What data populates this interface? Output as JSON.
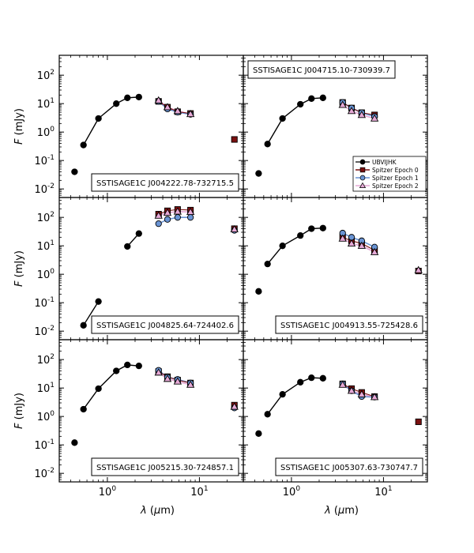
{
  "figure": {
    "axis_labels": {
      "ylabel": "F (mJy)",
      "xlabel": "λ (μm)"
    },
    "x_ticks": [
      {
        "value": 1,
        "label": "10^0"
      },
      {
        "value": 10,
        "label": "10^1"
      }
    ],
    "y_ticks": [
      {
        "value": 0.01,
        "label": "10^-2"
      },
      {
        "value": 0.1,
        "label": "10^-1"
      },
      {
        "value": 1,
        "label": "10^0"
      },
      {
        "value": 10,
        "label": "10^1"
      },
      {
        "value": 100,
        "label": "10^2"
      }
    ]
  },
  "chart_data": {
    "type": "scatter",
    "x_scale": "log",
    "y_scale": "log",
    "xlim": [
      0.3,
      30
    ],
    "ylim": [
      0.005,
      500
    ],
    "legend": {
      "panel": 1,
      "placement": "lower-right",
      "entries": [
        {
          "name": "UBVIJHK",
          "marker": "circle",
          "color": "#000000"
        },
        {
          "name": "Spitzer Epoch 0",
          "marker": "square",
          "color": "#7a1010"
        },
        {
          "name": "Spitzer Epoch 1",
          "marker": "circle",
          "color": "#6a94d4"
        },
        {
          "name": "Spitzer Epoch 2",
          "marker": "triangle",
          "color": "#e6a9d6"
        }
      ]
    },
    "panels": [
      {
        "label": "SSTISAGE1C J004222.78-732715.5",
        "label_pos": "bottom-right",
        "xlabel": "",
        "ylabel": "F (mJy)",
        "ubvijhk": {
          "x": [
            0.44,
            0.55,
            0.8,
            1.25,
            1.65,
            2.2
          ],
          "y": [
            0.04,
            0.35,
            3.0,
            10,
            16,
            17
          ],
          "line_from": 1
        },
        "epoch0": {
          "x": [
            3.6,
            4.5,
            5.8,
            8.0,
            24
          ],
          "y": [
            12,
            7.5,
            5.2,
            4.5,
            0.55
          ]
        },
        "epoch1": {
          "x": [
            3.6,
            4.5,
            5.8,
            8.0
          ],
          "y": [
            12,
            6.5,
            5.0,
            4.2
          ]
        },
        "epoch2": {
          "x": [
            3.6,
            4.5,
            5.8,
            8.0
          ],
          "y": [
            13,
            7.5,
            5.5,
            4.3
          ]
        }
      },
      {
        "label": "SSTISAGE1C J004715.10-730939.7",
        "label_pos": "top-left",
        "xlabel": "",
        "ylabel": "",
        "ubvijhk": {
          "x": [
            0.44,
            0.55,
            0.8,
            1.25,
            1.65,
            2.2
          ],
          "y": [
            0.035,
            0.38,
            3.0,
            9.5,
            15,
            16
          ],
          "line_from": 1
        },
        "epoch0": {
          "x": [
            3.6,
            4.5,
            5.8,
            8.0
          ],
          "y": [
            11,
            7.0,
            4.8,
            4.0
          ]
        },
        "epoch1": {
          "x": [
            3.6,
            4.5,
            5.8,
            8.0
          ],
          "y": [
            11,
            7.0,
            4.8,
            3.5
          ]
        },
        "epoch2": {
          "x": [
            3.6,
            4.5,
            5.8,
            8.0
          ],
          "y": [
            9,
            5.5,
            4.0,
            3.0
          ]
        }
      },
      {
        "label": "SSTISAGE1C J004825.64-724402.6",
        "label_pos": "bottom-right",
        "xlabel": "",
        "ylabel": "F (mJy)",
        "ubvijhk": {
          "x": [
            0.55,
            0.8,
            1.65,
            2.2
          ],
          "y": [
            0.016,
            0.11,
            9.5,
            27
          ],
          "line_from": 0,
          "line_gap_after": 1
        },
        "epoch0": {
          "x": [
            3.6,
            4.5,
            5.8,
            8.0,
            24
          ],
          "y": [
            130,
            170,
            190,
            180,
            40
          ]
        },
        "epoch1": {
          "x": [
            3.6,
            4.5,
            5.8,
            8.0,
            24
          ],
          "y": [
            60,
            85,
            100,
            100,
            35
          ]
        },
        "epoch2": {
          "x": [
            3.6,
            4.5,
            5.8,
            8.0,
            24
          ],
          "y": [
            115,
            145,
            160,
            155,
            38
          ]
        }
      },
      {
        "label": "SSTISAGE1C J004913.55-725428.6",
        "label_pos": "bottom-right",
        "xlabel": "",
        "ylabel": "",
        "ubvijhk": {
          "x": [
            0.44,
            0.55,
            0.8,
            1.25,
            1.65,
            2.2
          ],
          "y": [
            0.25,
            2.3,
            10,
            23,
            40,
            42
          ],
          "line_from": 1
        },
        "epoch0": {
          "x": [
            3.6,
            4.5,
            5.8,
            8.0,
            24
          ],
          "y": [
            20,
            15,
            12,
            7.0,
            1.3
          ]
        },
        "epoch1": {
          "x": [
            3.6,
            4.5,
            5.8,
            8.0
          ],
          "y": [
            28,
            20,
            15,
            9.0
          ]
        },
        "epoch2": {
          "x": [
            3.6,
            4.5,
            5.8,
            8.0,
            24
          ],
          "y": [
            18,
            12,
            10,
            6.0,
            1.4
          ]
        }
      },
      {
        "label": "SSTISAGE1C J005215.30-724857.1",
        "label_pos": "bottom-right",
        "xlabel": "λ (μm)",
        "ylabel": "F (mJy)",
        "ubvijhk": {
          "x": [
            0.44,
            0.55,
            0.8,
            1.25,
            1.65,
            2.2
          ],
          "y": [
            0.12,
            1.8,
            9.5,
            40,
            65,
            60
          ],
          "line_from": 1
        },
        "epoch0": {
          "x": [
            3.6,
            4.5,
            5.8,
            8.0,
            24
          ],
          "y": [
            38,
            25,
            19,
            15,
            2.5
          ]
        },
        "epoch1": {
          "x": [
            3.6,
            4.5,
            5.8,
            8.0,
            24
          ],
          "y": [
            42,
            24,
            20,
            15,
            2.0
          ]
        },
        "epoch2": {
          "x": [
            3.6,
            4.5,
            5.8,
            8.0,
            24
          ],
          "y": [
            35,
            21,
            17,
            13,
            2.2
          ]
        }
      },
      {
        "label": "SSTISAGE1C J005307.63-730747.7",
        "label_pos": "bottom-right",
        "xlabel": "λ (μm)",
        "ylabel": "",
        "ubvijhk": {
          "x": [
            0.44,
            0.55,
            0.8,
            1.25,
            1.65,
            2.2
          ],
          "y": [
            0.25,
            1.2,
            6.0,
            16,
            23,
            22
          ],
          "line_from": 1
        },
        "epoch0": {
          "x": [
            3.6,
            4.5,
            5.8,
            8.0,
            24
          ],
          "y": [
            14,
            9.5,
            7.0,
            5.0,
            0.65
          ]
        },
        "epoch1": {
          "x": [
            3.6,
            4.5,
            5.8,
            8.0
          ],
          "y": [
            14,
            8.0,
            5.0,
            4.8
          ]
        },
        "epoch2": {
          "x": [
            3.6,
            4.5,
            5.8,
            8.0
          ],
          "y": [
            13,
            8.0,
            6.0,
            4.8
          ]
        }
      }
    ]
  }
}
